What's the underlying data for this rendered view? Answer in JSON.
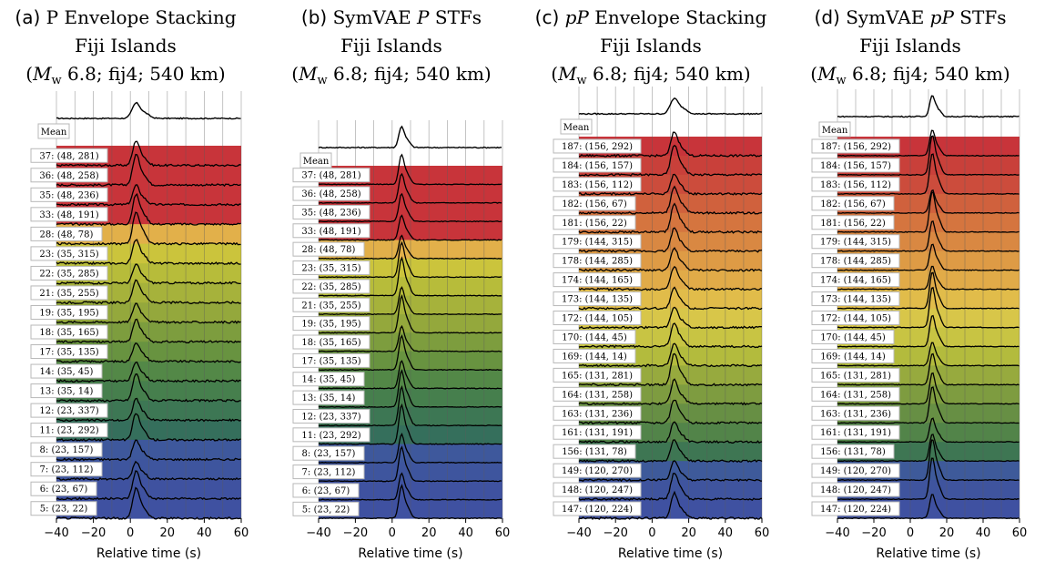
{
  "chart_data": [
    {
      "type": "area",
      "panel_letter": "(a)",
      "title_prefix": "P",
      "title_rest": " Envelope Stacking",
      "location": "Fiji Islands",
      "event_info": "(Mw 6.8; fij4; 540 km)",
      "xlabel": "Relative time (s)",
      "xlim": [
        -40,
        60
      ],
      "xticks": [
        -40,
        -20,
        0,
        20,
        40,
        60
      ],
      "mean_label": "Mean",
      "peak_time_s": 3,
      "rows": [
        {
          "label": "37: (48, 281)",
          "color": "#c8343a"
        },
        {
          "label": "36: (48, 258)",
          "color": "#c8343a"
        },
        {
          "label": "35: (48, 236)",
          "color": "#c8343a"
        },
        {
          "label": "33: (48, 191)",
          "color": "#c8343a"
        },
        {
          "label": "28: (48, 78)",
          "color": "#e2b04a"
        },
        {
          "label": "23: (35, 315)",
          "color": "#cbc43c"
        },
        {
          "label": "22: (35, 285)",
          "color": "#b7bc3a"
        },
        {
          "label": "21: (35, 255)",
          "color": "#a6b23b"
        },
        {
          "label": "19: (35, 195)",
          "color": "#94a83c"
        },
        {
          "label": "18: (35, 165)",
          "color": "#7d9d3e"
        },
        {
          "label": "17: (35, 135)",
          "color": "#689340"
        },
        {
          "label": "14: (35, 45)",
          "color": "#538847"
        },
        {
          "label": "13: (35, 14)",
          "color": "#467f4d"
        },
        {
          "label": "12: (23, 337)",
          "color": "#3d7754"
        },
        {
          "label": "11: (23, 292)",
          "color": "#356f5c"
        },
        {
          "label": "8: (23, 157)",
          "color": "#3e589c"
        },
        {
          "label": "7: (23, 112)",
          "color": "#3e559e"
        },
        {
          "label": "6: (23, 67)",
          "color": "#3f52a0"
        },
        {
          "label": "5: (23, 22)",
          "color": "#3f51a1"
        }
      ]
    },
    {
      "type": "area",
      "panel_letter": "(b)",
      "title_prefix": "SymVAE ",
      "title_italic": "P",
      "title_rest": " STFs",
      "location": "Fiji Islands",
      "event_info": "(Mw 6.8; fij4; 540 km)",
      "xlabel": "Relative time (s)",
      "xlim": [
        -40,
        60
      ],
      "xticks": [
        -40,
        -20,
        0,
        20,
        40,
        60
      ],
      "mean_label": "Mean",
      "peak_time_s": 5,
      "rows": [
        {
          "label": "37: (48, 281)",
          "color": "#c8343a"
        },
        {
          "label": "36: (48, 258)",
          "color": "#c8343a"
        },
        {
          "label": "35: (48, 236)",
          "color": "#c8343a"
        },
        {
          "label": "33: (48, 191)",
          "color": "#c8343a"
        },
        {
          "label": "28: (48, 78)",
          "color": "#e2b04a"
        },
        {
          "label": "23: (35, 315)",
          "color": "#cbc43c"
        },
        {
          "label": "22: (35, 285)",
          "color": "#b7bc3a"
        },
        {
          "label": "21: (35, 255)",
          "color": "#a6b23b"
        },
        {
          "label": "19: (35, 195)",
          "color": "#94a83c"
        },
        {
          "label": "18: (35, 165)",
          "color": "#7d9d3e"
        },
        {
          "label": "17: (35, 135)",
          "color": "#689340"
        },
        {
          "label": "14: (35, 45)",
          "color": "#538847"
        },
        {
          "label": "13: (35, 14)",
          "color": "#467f4d"
        },
        {
          "label": "12: (23, 337)",
          "color": "#3d7754"
        },
        {
          "label": "11: (23, 292)",
          "color": "#356f5c"
        },
        {
          "label": "8: (23, 157)",
          "color": "#3e589c"
        },
        {
          "label": "7: (23, 112)",
          "color": "#3e559e"
        },
        {
          "label": "6: (23, 67)",
          "color": "#3f52a0"
        },
        {
          "label": "5: (23, 22)",
          "color": "#3f51a1"
        }
      ]
    },
    {
      "type": "area",
      "panel_letter": "(c)",
      "title_italic": "pP",
      "title_rest": " Envelope Stacking",
      "location": "Fiji Islands",
      "event_info": "(Mw 6.8; fij4; 540 km)",
      "xlabel": "Relative time (s)",
      "xlim": [
        -40,
        60
      ],
      "xticks": [
        -40,
        -20,
        0,
        20,
        40,
        60
      ],
      "mean_label": "Mean",
      "peak_time_s": 12,
      "rows": [
        {
          "label": "187: (156, 292)",
          "color": "#c8343a"
        },
        {
          "label": "184: (156, 157)",
          "color": "#c9403a"
        },
        {
          "label": "183: (156, 112)",
          "color": "#cc4c3c"
        },
        {
          "label": "182: (156, 67)",
          "color": "#d0613d"
        },
        {
          "label": "181: (156, 22)",
          "color": "#d5753f"
        },
        {
          "label": "179: (144, 315)",
          "color": "#d98842"
        },
        {
          "label": "178: (144, 285)",
          "color": "#de9b45"
        },
        {
          "label": "174: (144, 165)",
          "color": "#e1ab48"
        },
        {
          "label": "173: (144, 135)",
          "color": "#e1bc4a"
        },
        {
          "label": "172: (144, 105)",
          "color": "#d8c649"
        },
        {
          "label": "170: (144, 45)",
          "color": "#c8c443"
        },
        {
          "label": "169: (144, 14)",
          "color": "#b3bb3d"
        },
        {
          "label": "165: (131, 281)",
          "color": "#97aa3e"
        },
        {
          "label": "164: (131, 258)",
          "color": "#7e9c40"
        },
        {
          "label": "163: (131, 236)",
          "color": "#678f44"
        },
        {
          "label": "161: (131, 191)",
          "color": "#528449"
        },
        {
          "label": "156: (131, 78)",
          "color": "#3e7653"
        },
        {
          "label": "149: (120, 270)",
          "color": "#3e5a9a"
        },
        {
          "label": "148: (120, 247)",
          "color": "#3f549e"
        },
        {
          "label": "147: (120, 224)",
          "color": "#3f51a1"
        }
      ]
    },
    {
      "type": "area",
      "panel_letter": "(d)",
      "title_prefix": "SymVAE ",
      "title_italic": "pP",
      "title_rest": " STFs",
      "location": "Fiji Islands",
      "event_info": "(Mw 6.8; fij4; 540 km)",
      "xlabel": "Relative time (s)",
      "xlim": [
        -40,
        60
      ],
      "xticks": [
        -40,
        -20,
        0,
        20,
        40,
        60
      ],
      "mean_label": "Mean",
      "peak_time_s": 12,
      "rows": [
        {
          "label": "187: (156, 292)",
          "color": "#c8343a"
        },
        {
          "label": "184: (156, 157)",
          "color": "#c9403a"
        },
        {
          "label": "183: (156, 112)",
          "color": "#cc4c3c"
        },
        {
          "label": "182: (156, 67)",
          "color": "#d0613d"
        },
        {
          "label": "181: (156, 22)",
          "color": "#d5753f"
        },
        {
          "label": "179: (144, 315)",
          "color": "#d98842"
        },
        {
          "label": "178: (144, 285)",
          "color": "#de9b45"
        },
        {
          "label": "174: (144, 165)",
          "color": "#e1ab48"
        },
        {
          "label": "173: (144, 135)",
          "color": "#e1bc4a"
        },
        {
          "label": "172: (144, 105)",
          "color": "#d8c649"
        },
        {
          "label": "170: (144, 45)",
          "color": "#c8c443"
        },
        {
          "label": "169: (144, 14)",
          "color": "#b3bb3d"
        },
        {
          "label": "165: (131, 281)",
          "color": "#97aa3e"
        },
        {
          "label": "164: (131, 258)",
          "color": "#7e9c40"
        },
        {
          "label": "163: (131, 236)",
          "color": "#678f44"
        },
        {
          "label": "161: (131, 191)",
          "color": "#528449"
        },
        {
          "label": "156: (131, 78)",
          "color": "#3e7653"
        },
        {
          "label": "149: (120, 270)",
          "color": "#3e5a9a"
        },
        {
          "label": "148: (120, 247)",
          "color": "#3f549e"
        },
        {
          "label": "147: (120, 224)",
          "color": "#3f51a1"
        }
      ]
    }
  ]
}
